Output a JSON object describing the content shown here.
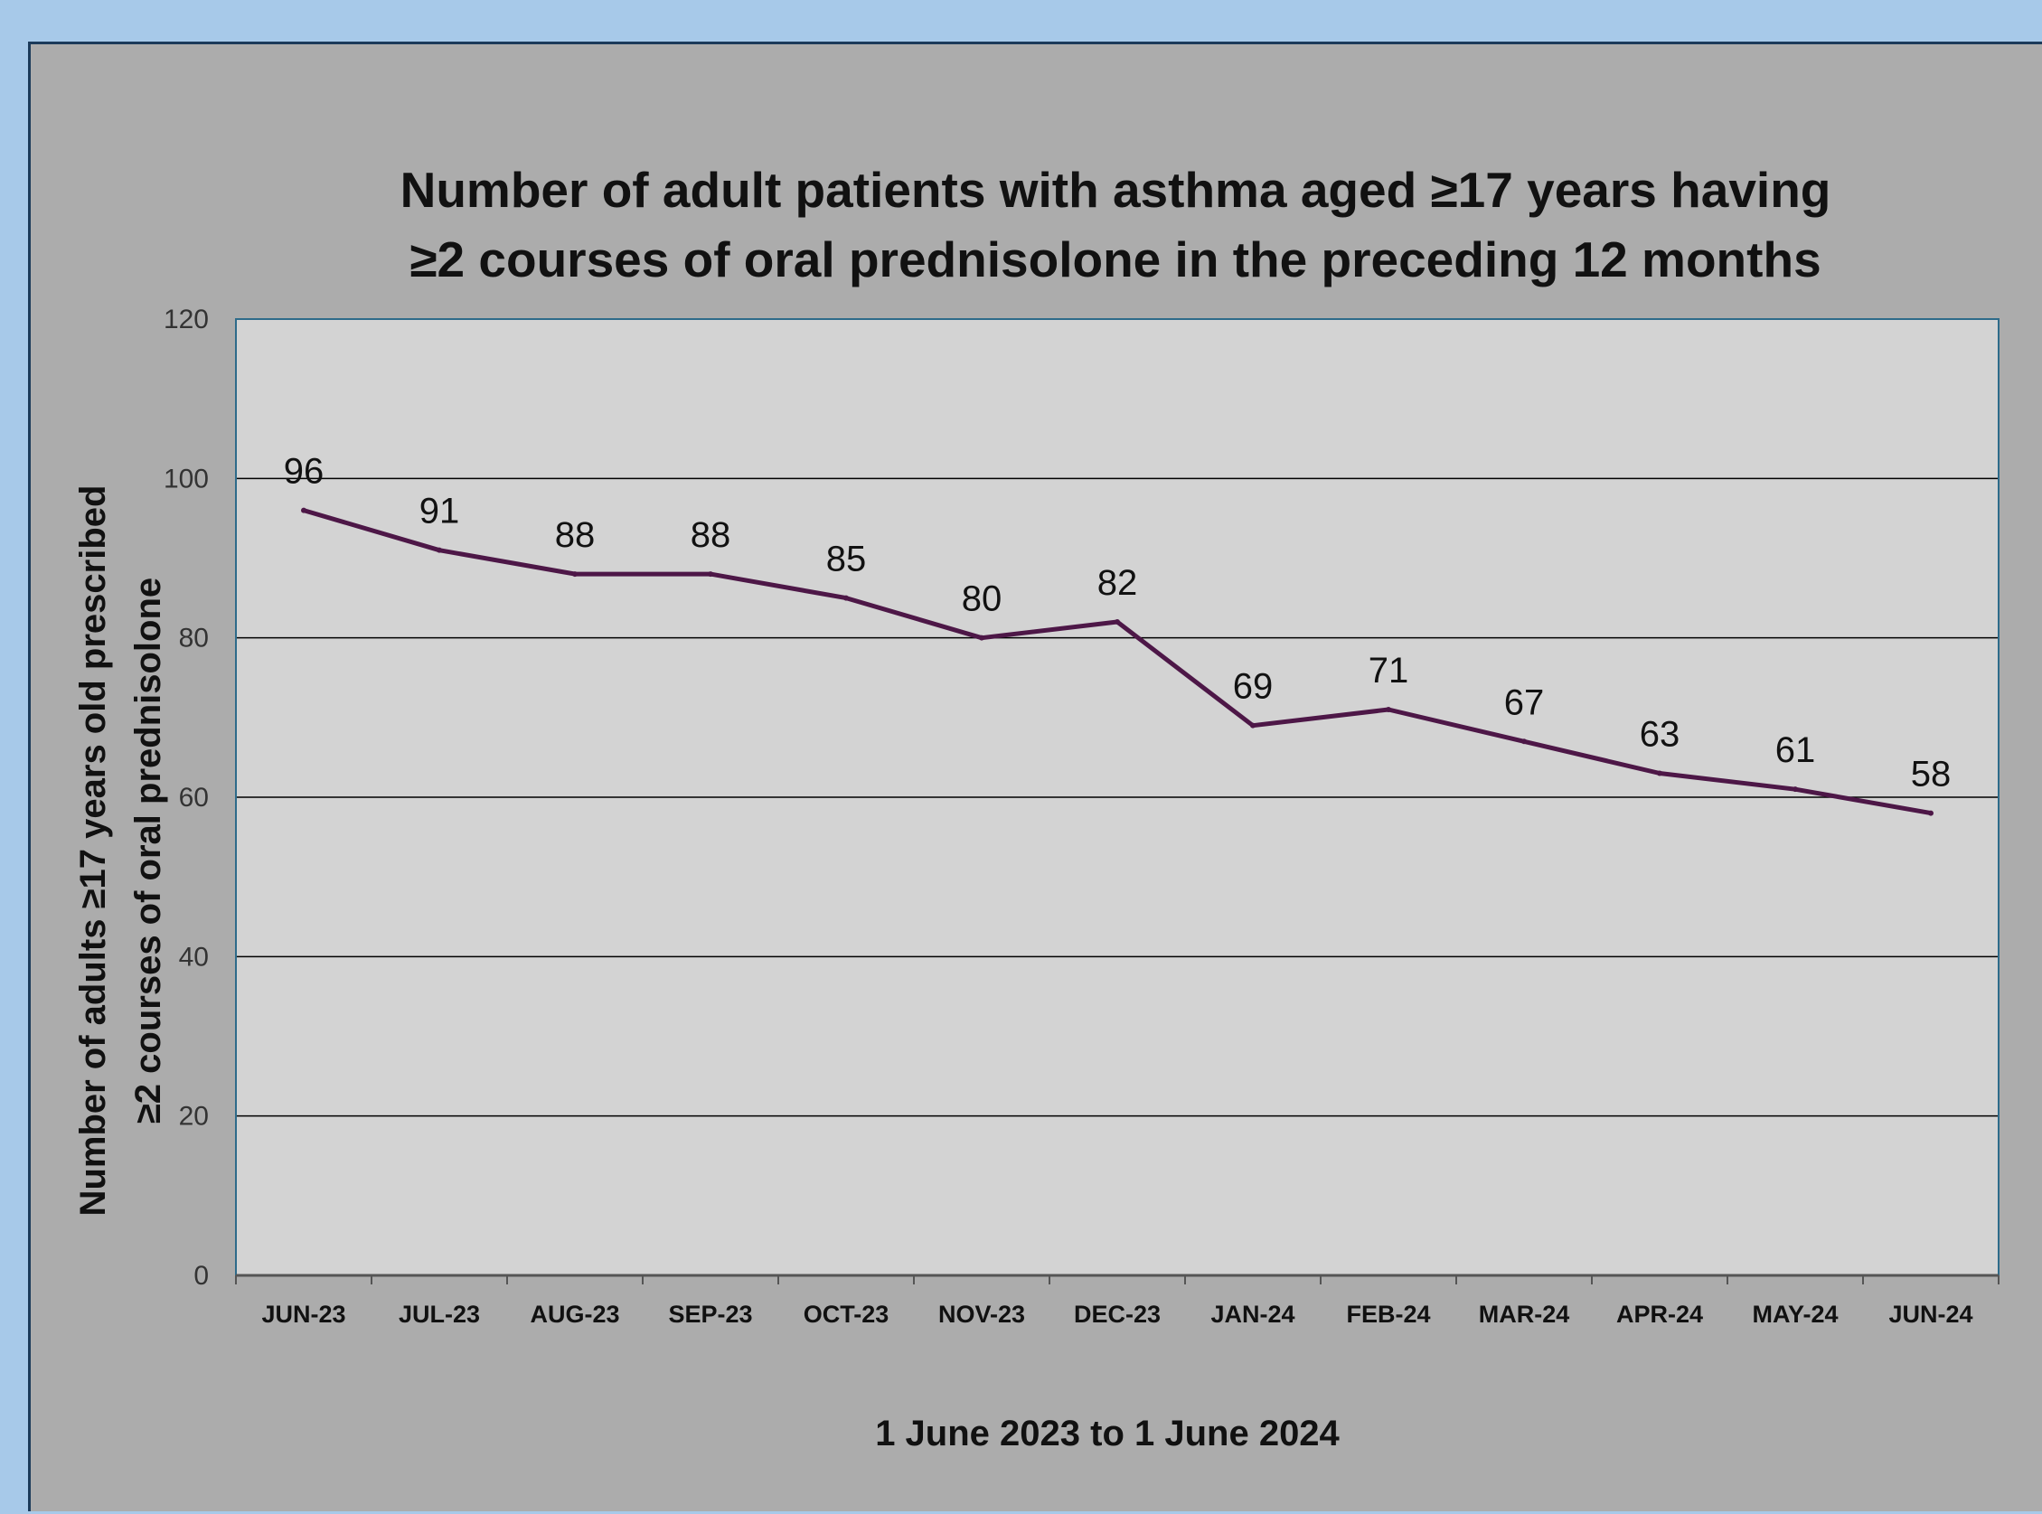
{
  "chart_data": {
    "type": "line",
    "title_lines": [
      "Number of adult patients with asthma aged ≥17 years having",
      "≥2 courses of oral prednisolone in the preceding 12 months"
    ],
    "xlabel": "1 June 2023 to 1 June 2024",
    "ylabel_lines": [
      "Number of adults ≥17 years old prescribed",
      "≥2 courses of oral prednisolone"
    ],
    "categories": [
      "JUN-23",
      "JUL-23",
      "AUG-23",
      "SEP-23",
      "OCT-23",
      "NOV-23",
      "DEC-23",
      "JAN-24",
      "FEB-24",
      "MAR-24",
      "APR-24",
      "MAY-24",
      "JUN-24"
    ],
    "values": [
      96,
      91,
      88,
      88,
      85,
      80,
      82,
      69,
      71,
      67,
      63,
      61,
      58
    ],
    "ylim": [
      0,
      120
    ],
    "yticks": [
      0,
      20,
      40,
      60,
      80,
      100,
      120
    ],
    "grid": "horizontal",
    "legend": "none",
    "colors": {
      "line": "#4d1747",
      "plot_bg": "#d3d3d3",
      "panel_bg": "#acacac",
      "page_bg": "#a7c9e9",
      "plot_border": "#2e6b8a",
      "gridline": "#000000"
    }
  }
}
